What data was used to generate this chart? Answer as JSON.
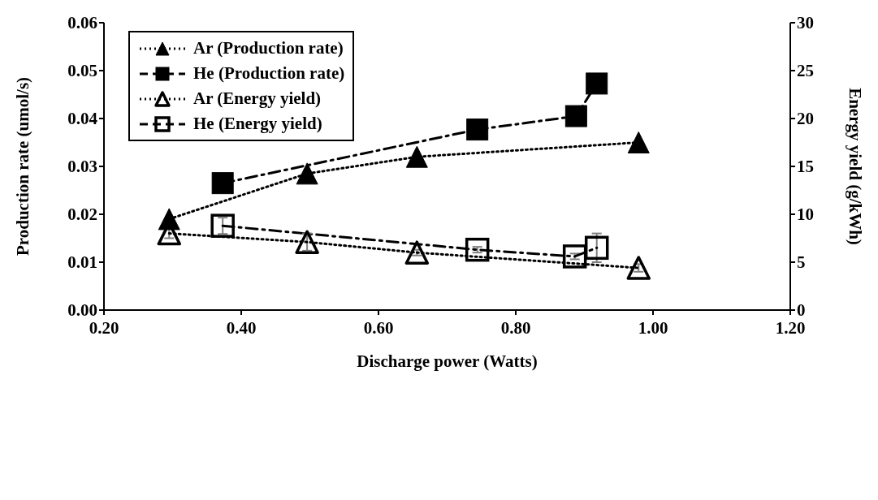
{
  "chart_data": {
    "type": "line",
    "xlabel": "Discharge power (Watts)",
    "ylabel": "Production rate (umol/s)",
    "y2label": "Energy yield (g/kWh)",
    "xlim": [
      0.2,
      1.2
    ],
    "xticks": [
      {
        "value": 0.2,
        "label": "0.20"
      },
      {
        "value": 0.4,
        "label": "0.40"
      },
      {
        "value": 0.6,
        "label": "0.60"
      },
      {
        "value": 0.8,
        "label": "0.80"
      },
      {
        "value": 1.0,
        "label": "1.00"
      },
      {
        "value": 1.2,
        "label": "1.20"
      }
    ],
    "ylim": [
      0,
      0.06
    ],
    "yticks": [
      {
        "value": 0,
        "label": "0.00"
      },
      {
        "value": 0.01,
        "label": "0.01"
      },
      {
        "value": 0.02,
        "label": "0.02"
      },
      {
        "value": 0.03,
        "label": "0.03"
      },
      {
        "value": 0.04,
        "label": "0.04"
      },
      {
        "value": 0.05,
        "label": "0.05"
      },
      {
        "value": 0.06,
        "label": "0.06"
      }
    ],
    "y2lim": [
      0,
      30
    ],
    "y2ticks": [
      0,
      5,
      10,
      15,
      20,
      25,
      30
    ],
    "grid": false,
    "legend": "top left",
    "series": [
      {
        "name": "Ar (Production rate)",
        "color": "#000000",
        "marker": "triangle",
        "line_style": "dotted",
        "x": [
          0.295,
          0.496,
          0.656,
          0.979
        ],
        "values": [
          0.019,
          0.0285,
          0.032,
          0.035
        ]
      },
      {
        "name": "He (Production rate)",
        "color": "#000000",
        "marker": "square",
        "line_style": "dashed",
        "x": [
          0.373,
          0.744,
          0.888,
          0.918
        ],
        "values": [
          0.0265,
          0.0377,
          0.0405,
          0.0473
        ]
      },
      {
        "name": "Ar (Energy yield)",
        "color": "#000000",
        "marker": "triangle",
        "line_style": "dotted",
        "axis": "y2",
        "x": [
          0.295,
          0.496,
          0.656,
          0.979
        ],
        "values": [
          8.0,
          7.1,
          6.0,
          4.4
        ],
        "errors": [
          0.5,
          0.9,
          0.3,
          0.4
        ]
      },
      {
        "name": "He (Energy yield)",
        "color": "#000000",
        "marker": "square",
        "line_style": "dashed",
        "axis": "y2",
        "x": [
          0.373,
          0.744,
          0.886,
          0.918
        ],
        "values": [
          8.8,
          6.3,
          5.6,
          6.5
        ],
        "errors": [
          0.85,
          0.3,
          0.3,
          1.5
        ]
      }
    ]
  }
}
